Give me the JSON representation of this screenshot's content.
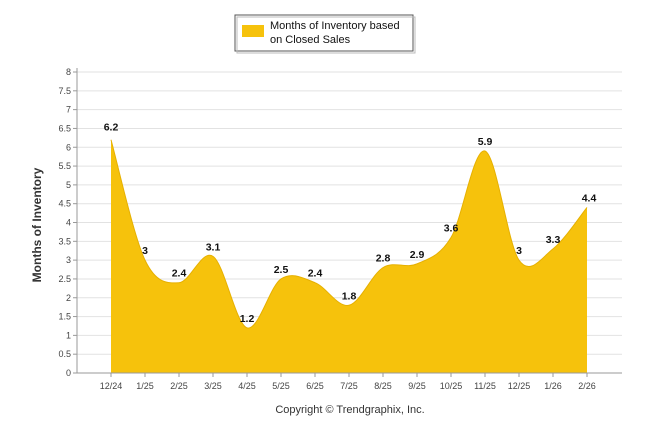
{
  "chart_data": {
    "type": "area",
    "title": "",
    "xlabel": "",
    "ylabel": "Months of Inventory",
    "ylim": [
      0,
      8
    ],
    "ytick_step": 0.5,
    "grid": true,
    "legend_position": "top-center",
    "categories": [
      "12/24",
      "1/25",
      "2/25",
      "3/25",
      "4/25",
      "5/25",
      "6/25",
      "7/25",
      "8/25",
      "9/25",
      "10/25",
      "11/25",
      "12/25",
      "1/26",
      "2/26"
    ],
    "series": [
      {
        "name": "Months of Inventory based on Closed Sales",
        "color": "#f6c20c",
        "values": [
          6.2,
          3,
          2.4,
          3.1,
          1.2,
          2.5,
          2.4,
          1.8,
          2.8,
          2.9,
          3.6,
          5.9,
          3,
          3.3,
          4.4
        ]
      }
    ],
    "data_labels": [
      "6.2",
      "3",
      "2.4",
      "3.1",
      "1.2",
      "2.5",
      "2.4",
      "1.8",
      "2.8",
      "2.9",
      "3.6",
      "5.9",
      "3",
      "3.3",
      "4.4"
    ]
  },
  "legend": {
    "line1": "Months of Inventory based",
    "line2": "on Closed Sales"
  },
  "footer": "Copyright © Trendgraphix, Inc.",
  "colors": {
    "grid": "#e2e2e2",
    "axis": "#999999"
  }
}
